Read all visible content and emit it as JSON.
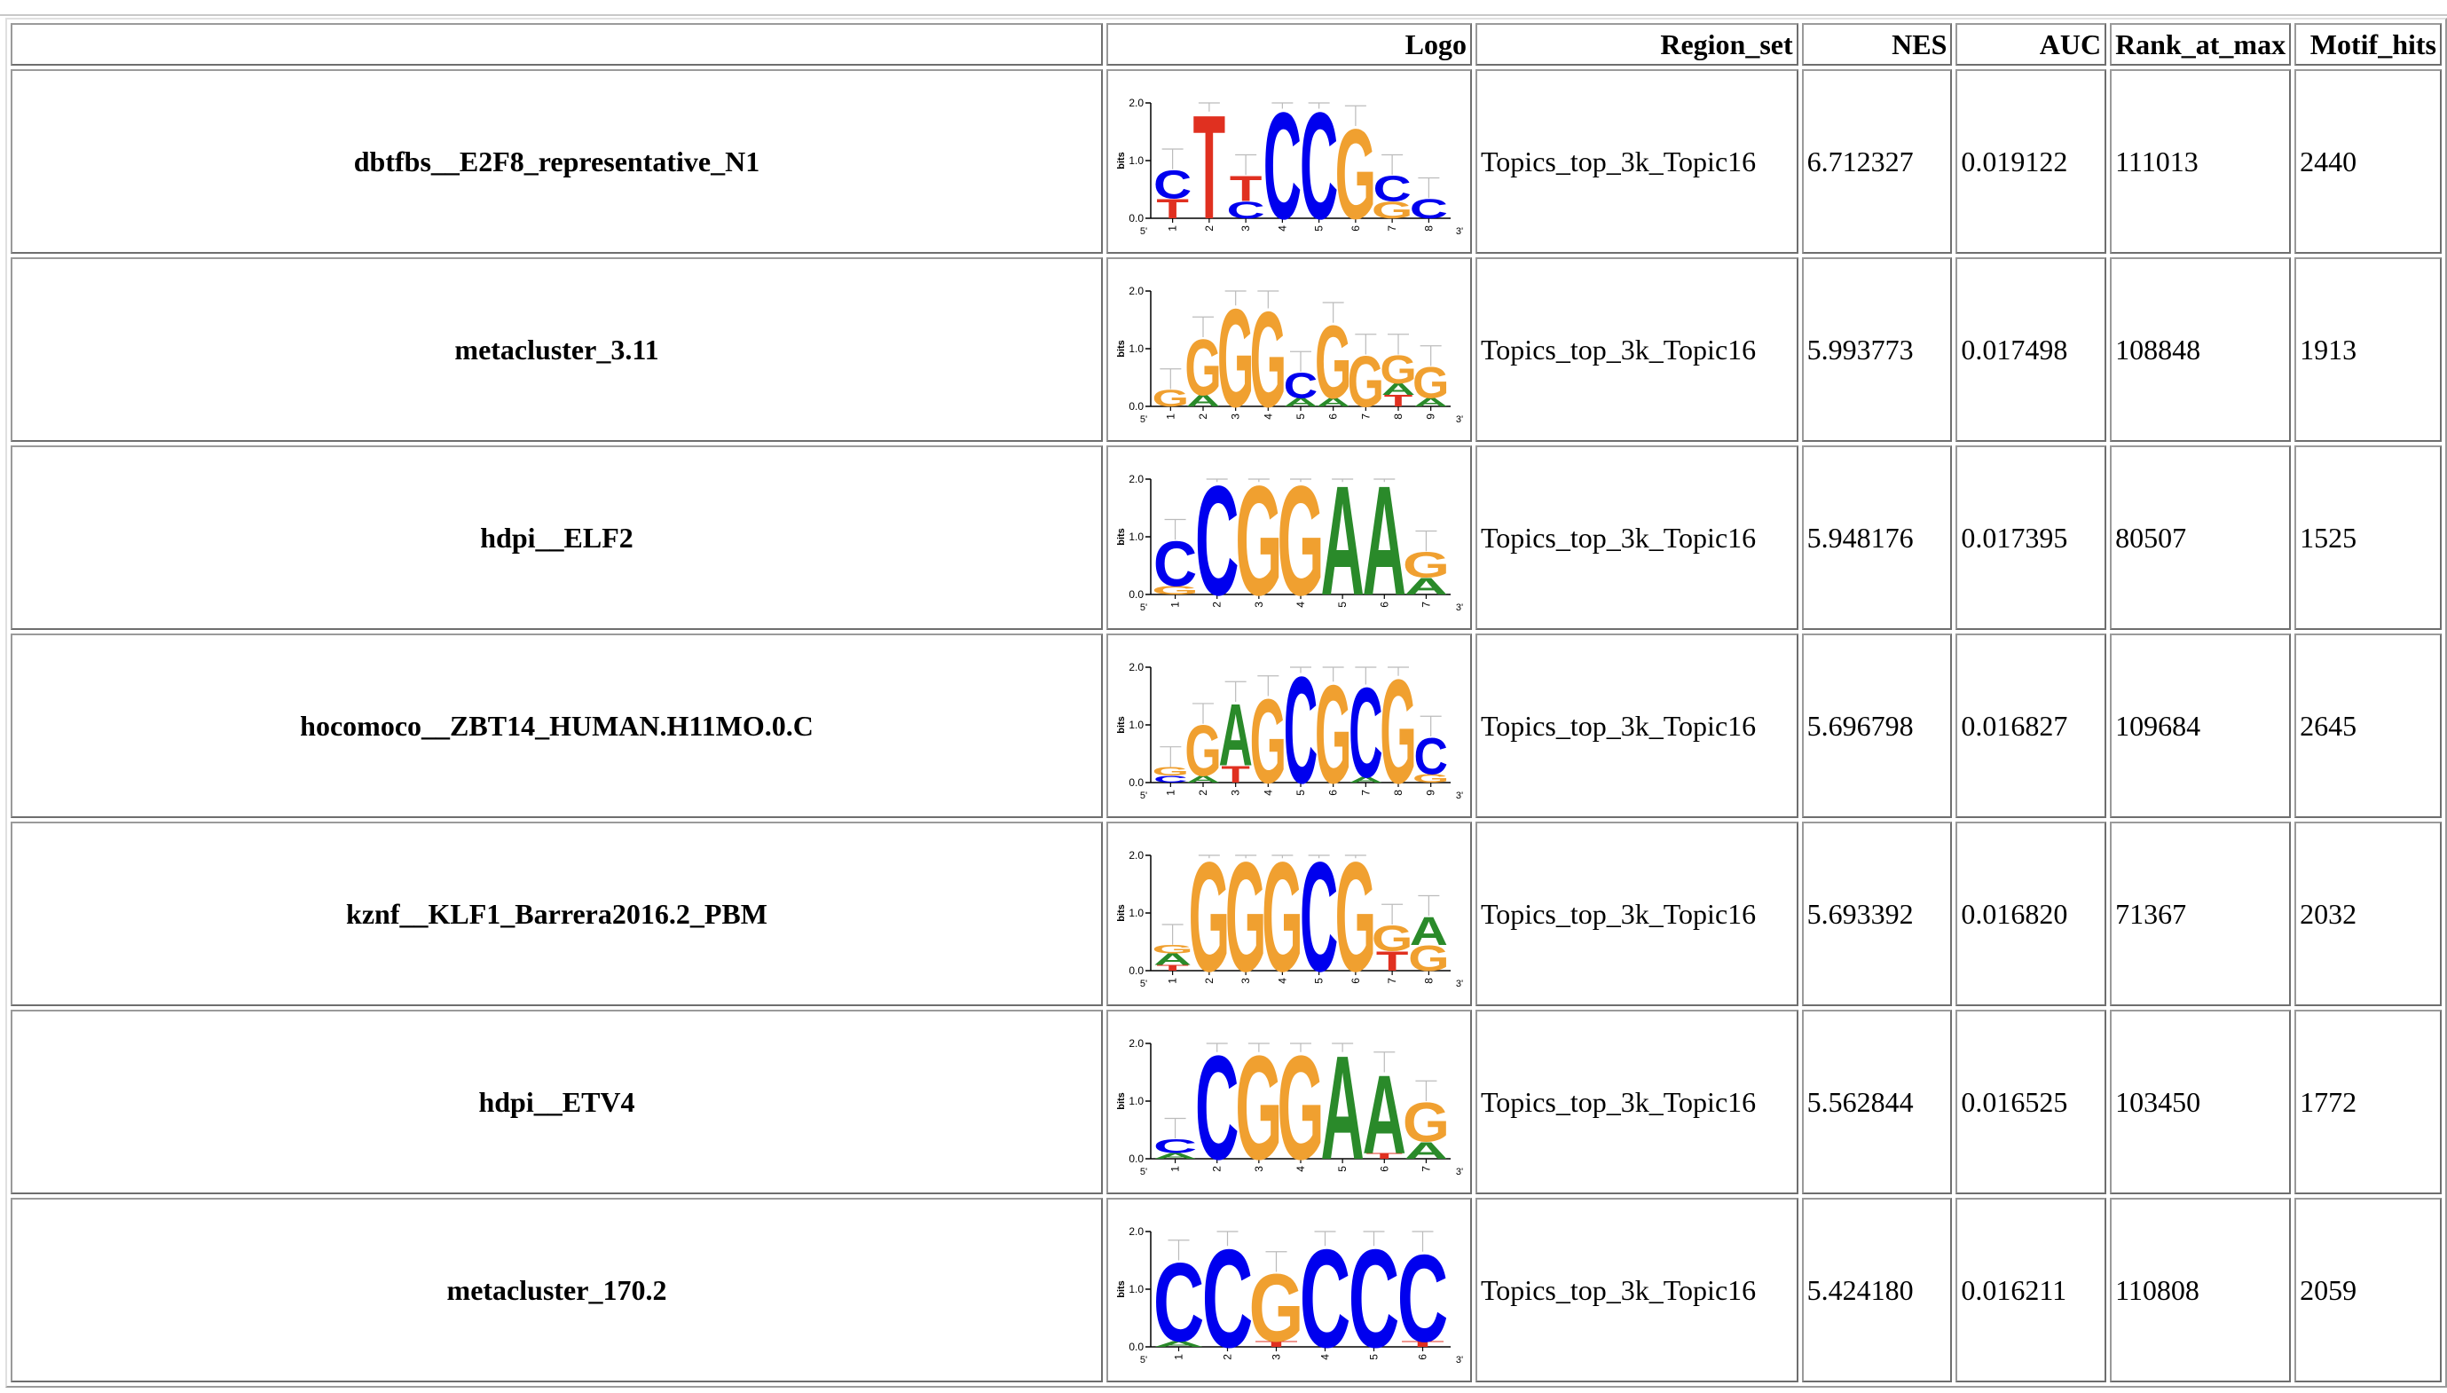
{
  "table": {
    "headers": [
      "",
      "Logo",
      "Region_set",
      "NES",
      "AUC",
      "Rank_at_max",
      "Motif_hits"
    ],
    "logo_axis": {
      "y_title": "bits",
      "y_ticks": [
        "2.0",
        "1.0",
        "0.0"
      ],
      "five_prime": "5'",
      "three_prime": "3'"
    },
    "rows": [
      {
        "name": "dbtfbs__E2F8_representative_N1",
        "region_set": "Topics_top_3k_Topic16",
        "nes": "6.712327",
        "auc": "0.019122",
        "rank_at_max": "111013",
        "motif_hits": "2440",
        "logo": [
          [
            [
              "T",
              0.35
            ],
            [
              "C",
              0.5
            ]
          ],
          [
            [
              "T",
              1.85
            ]
          ],
          [
            [
              "C",
              0.3
            ],
            [
              "T",
              0.45
            ]
          ],
          [
            [
              "C",
              1.9
            ]
          ],
          [
            [
              "C",
              1.9
            ]
          ],
          [
            [
              "G",
              1.6
            ]
          ],
          [
            [
              "G",
              0.3
            ],
            [
              "C",
              0.45
            ]
          ],
          [
            [
              "C",
              0.35
            ]
          ]
        ]
      },
      {
        "name": "metacluster_3.11",
        "region_set": "Topics_top_3k_Topic16",
        "nes": "5.993773",
        "auc": "0.017498",
        "rank_at_max": "108848",
        "motif_hits": "1913",
        "logo": [
          [
            [
              "G",
              0.3
            ]
          ],
          [
            [
              "A",
              0.2
            ],
            [
              "G",
              1.0
            ]
          ],
          [
            [
              "G",
              1.75
            ]
          ],
          [
            [
              "G",
              1.7
            ]
          ],
          [
            [
              "A",
              0.15
            ],
            [
              "C",
              0.45
            ]
          ],
          [
            [
              "A",
              0.15
            ],
            [
              "G",
              1.3
            ]
          ],
          [
            [
              "G",
              0.9
            ]
          ],
          [
            [
              "T",
              0.2
            ],
            [
              "A",
              0.2
            ],
            [
              "G",
              0.5
            ]
          ],
          [
            [
              "A",
              0.15
            ],
            [
              "G",
              0.55
            ]
          ]
        ]
      },
      {
        "name": "hdpi__ELF2",
        "region_set": "Topics_top_3k_Topic16",
        "nes": "5.948176",
        "auc": "0.017395",
        "rank_at_max": "80507",
        "motif_hits": "1525",
        "logo": [
          [
            [
              "G",
              0.15
            ],
            [
              "C",
              0.8
            ]
          ],
          [
            [
              "C",
              1.95
            ]
          ],
          [
            [
              "G",
              1.95
            ]
          ],
          [
            [
              "G",
              1.95
            ]
          ],
          [
            [
              "A",
              1.95
            ]
          ],
          [
            [
              "A",
              1.95
            ]
          ],
          [
            [
              "A",
              0.3
            ],
            [
              "G",
              0.45
            ]
          ]
        ]
      },
      {
        "name": "hocomoco__ZBT14_HUMAN.H11MO.0.C",
        "region_set": "Topics_top_3k_Topic16",
        "nes": "5.696798",
        "auc": "0.016827",
        "rank_at_max": "109684",
        "motif_hits": "2645",
        "logo": [
          [
            [
              "C",
              0.12
            ],
            [
              "G",
              0.15
            ]
          ],
          [
            [
              "A",
              0.12
            ],
            [
              "G",
              0.9
            ]
          ],
          [
            [
              "T",
              0.3
            ],
            [
              "A",
              1.1
            ]
          ],
          [
            [
              "G",
              1.5
            ]
          ],
          [
            [
              "C",
              1.9
            ]
          ],
          [
            [
              "G",
              1.75
            ]
          ],
          [
            [
              "A",
              0.1
            ],
            [
              "C",
              1.6
            ]
          ],
          [
            [
              "G",
              1.85
            ]
          ],
          [
            [
              "G",
              0.15
            ],
            [
              "C",
              0.65
            ]
          ]
        ]
      },
      {
        "name": "kznf__KLF1_Barrera2016.2_PBM",
        "region_set": "Topics_top_3k_Topic16",
        "nes": "5.693392",
        "auc": "0.016820",
        "rank_at_max": "71367",
        "motif_hits": "2032",
        "logo": [
          [
            [
              "T",
              0.1
            ],
            [
              "A",
              0.2
            ],
            [
              "G",
              0.15
            ]
          ],
          [
            [
              "G",
              1.95
            ]
          ],
          [
            [
              "G",
              1.95
            ]
          ],
          [
            [
              "G",
              1.95
            ]
          ],
          [
            [
              "C",
              1.95
            ]
          ],
          [
            [
              "G",
              1.95
            ]
          ],
          [
            [
              "T",
              0.35
            ],
            [
              "G",
              0.45
            ]
          ],
          [
            [
              "G",
              0.45
            ],
            [
              "A",
              0.5
            ]
          ]
        ]
      },
      {
        "name": "hdpi__ETV4",
        "region_set": "Topics_top_3k_Topic16",
        "nes": "5.562844",
        "auc": "0.016525",
        "rank_at_max": "103450",
        "motif_hits": "1772",
        "logo": [
          [
            [
              "A",
              0.1
            ],
            [
              "C",
              0.25
            ]
          ],
          [
            [
              "C",
              1.85
            ]
          ],
          [
            [
              "G",
              1.85
            ]
          ],
          [
            [
              "G",
              1.85
            ]
          ],
          [
            [
              "A",
              1.85
            ]
          ],
          [
            [
              "T",
              0.1
            ],
            [
              "A",
              1.4
            ]
          ],
          [
            [
              "A",
              0.3
            ],
            [
              "G",
              0.7
            ]
          ]
        ]
      },
      {
        "name": "metacluster_170.2",
        "region_set": "Topics_top_3k_Topic16",
        "nes": "5.424180",
        "auc": "0.016211",
        "rank_at_max": "110808",
        "motif_hits": "2059",
        "logo": [
          [
            [
              "A",
              0.1
            ],
            [
              "C",
              1.4
            ]
          ],
          [
            [
              "C",
              1.75
            ]
          ],
          [
            [
              "T",
              0.1
            ],
            [
              "G",
              1.2
            ]
          ],
          [
            [
              "C",
              1.75
            ]
          ],
          [
            [
              "C",
              1.75
            ]
          ],
          [
            [
              "T",
              0.1
            ],
            [
              "C",
              1.55
            ]
          ]
        ]
      }
    ]
  },
  "colors": {
    "A": "#2a8a2a",
    "C": "#0000ee",
    "G": "#f0a030",
    "T": "#e03020",
    "cell_border": "#6e6e6e",
    "table_border": "#9a9a9a"
  }
}
